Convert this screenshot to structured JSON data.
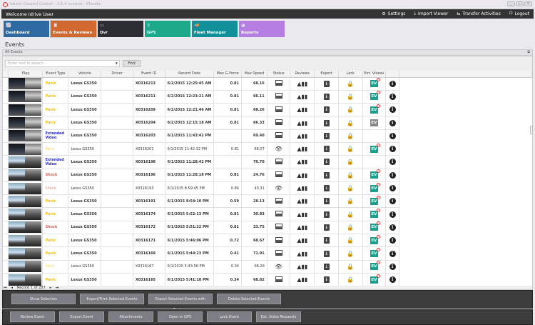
{
  "window": {
    "title": "Idrive Control Center - 3.4.4 version - Florida"
  },
  "header": {
    "welcome": "Welcome Idrive User",
    "menu": [
      {
        "label": "Settings",
        "icon": "gears-icon"
      },
      {
        "label": "Import Viewer",
        "icon": "download-icon"
      },
      {
        "label": "Transfer Activities",
        "icon": "transfer-icon"
      },
      {
        "label": "Logout",
        "icon": "power-icon"
      }
    ]
  },
  "tiles": [
    {
      "label": "Dashboard",
      "color": "#2f6aa3"
    },
    {
      "label": "Events & Reviews",
      "color": "#d0682f"
    },
    {
      "label": "Dvr",
      "color": "#2c2e33"
    },
    {
      "label": "GPS",
      "color": "#1ca98a"
    },
    {
      "label": "Fleet Manager",
      "color": "#12909a"
    },
    {
      "label": "Reports",
      "color": "#b47fe0"
    }
  ],
  "page": {
    "title": "Events",
    "section": "All Events",
    "search_placeholder": "Enter text to search...",
    "find": "Find"
  },
  "columns": [
    "Play",
    "Event Type",
    "Vehicle",
    "Driver",
    "Event ID",
    "Record Date",
    "Max G-Force",
    "Max Speed",
    "Status",
    "Reviews",
    "Export",
    "Lock",
    "Ext. Videos",
    ""
  ],
  "rows": [
    {
      "type": "Panic",
      "vehicle": "Lexus GS350",
      "id": "X0316213",
      "date": "6/2/2015 12:25:45 AM",
      "g": "0.81",
      "speed": "68.16",
      "status": "image",
      "ev": "new",
      "bold": true,
      "night": true
    },
    {
      "type": "Panic",
      "vehicle": "Lexus GS350",
      "id": "X0316211",
      "date": "6/2/2015 12:23:21 AM",
      "g": "0.81",
      "speed": "66.11",
      "status": "image",
      "ev": "new",
      "bold": true,
      "night": true
    },
    {
      "type": "Panic",
      "vehicle": "Lexus GS350",
      "id": "X0316209",
      "date": "6/2/2015 12:21:46 AM",
      "g": "0.81",
      "speed": "68.26",
      "status": "image",
      "ev": "new",
      "bold": true,
      "night": true
    },
    {
      "type": "Panic",
      "vehicle": "Lexus GS350",
      "id": "X0316204",
      "date": "6/2/2015 12:15:18 AM",
      "g": "0.81",
      "speed": "66.33",
      "status": "image",
      "ev": "grey",
      "bold": true,
      "night": true
    },
    {
      "type": "Extended Video",
      "vehicle": "Lexus GS350",
      "id": "X0316203",
      "date": "6/1/2015 11:43:42 PM",
      "g": "",
      "speed": "69.40",
      "status": "image",
      "ev": "none",
      "bold": true,
      "night": true
    },
    {
      "type": "Panic",
      "vehicle": "Lexus GS350",
      "id": "X0316201",
      "date": "6/1/2015 11:42:32 PM",
      "g": "0.81",
      "speed": "68.07",
      "status": "eye",
      "ev": "new",
      "bold": false,
      "night": true
    },
    {
      "type": "Extended Video",
      "vehicle": "Lexus GS350",
      "id": "X0316198",
      "date": "6/1/2015 11:28:42 PM",
      "g": "",
      "speed": "70.70",
      "status": "image",
      "ev": "none",
      "bold": true,
      "night": false
    },
    {
      "type": "Shock",
      "vehicle": "Lexus GS350",
      "id": "X0316196",
      "date": "6/1/2015 11:28:18 PM",
      "g": "0.81",
      "speed": "24.76",
      "status": "image",
      "ev": "new",
      "bold": true,
      "night": false
    },
    {
      "type": "Shock",
      "vehicle": "Lexus GS350",
      "id": "X0316193",
      "date": "6/1/2015 8:59:45 PM",
      "g": "0.84",
      "speed": "40.31",
      "status": "eye",
      "ev": "new",
      "bold": false,
      "night": false
    },
    {
      "type": "Panic",
      "vehicle": "Lexus GS350",
      "id": "X0316191",
      "date": "6/1/2015 8:54:10 PM",
      "g": "0.59",
      "speed": "28.13",
      "status": "image",
      "ev": "new",
      "bold": true,
      "night": false
    },
    {
      "type": "Panic",
      "vehicle": "Lexus GS350",
      "id": "X0316174",
      "date": "6/1/2015 5:52:13 PM",
      "g": "0.81",
      "speed": "30.83",
      "status": "image",
      "ev": "new",
      "bold": true,
      "night": false
    },
    {
      "type": "Shock",
      "vehicle": "Lexus GS350",
      "id": "X0316172",
      "date": "6/1/2015 5:51:22 PM",
      "g": "0.81",
      "speed": "33.75",
      "status": "image",
      "ev": "new",
      "bold": true,
      "night": false
    },
    {
      "type": "Panic",
      "vehicle": "Lexus GS350",
      "id": "X0316171",
      "date": "6/1/2015 5:46:06 PM",
      "g": "0.72",
      "speed": "68.67",
      "status": "image",
      "ev": "new",
      "bold": true,
      "night": false
    },
    {
      "type": "Panic",
      "vehicle": "Lexus GS350",
      "id": "X0316169",
      "date": "6/1/2015 5:44:23 PM",
      "g": "0.41",
      "speed": "71.91",
      "status": "image",
      "ev": "new",
      "bold": true,
      "night": false
    },
    {
      "type": "Panic",
      "vehicle": "Lexus GS350",
      "id": "X0316167",
      "date": "6/1/2015 5:43:56 PM",
      "g": "0.34",
      "speed": "68.29",
      "status": "eye",
      "ev": "new",
      "bold": false,
      "night": false
    },
    {
      "type": "Panic",
      "vehicle": "Lexus GS350",
      "id": "X0316165",
      "date": "6/1/2015 5:41:18 PM",
      "g": "0.34",
      "speed": "68.82",
      "status": "image",
      "ev": "new",
      "bold": true,
      "night": false
    }
  ],
  "type_colors": {
    "Panic": "#e6c21e",
    "Extended Video": "#2b2bcc",
    "Shock": "#e0604e"
  },
  "pager": {
    "record": "Record 1 of 287"
  },
  "actions1": [
    "Show Selection",
    "Export/Print Selected Events",
    "Export Selected Events with Reviews",
    "Delete Selected  Events"
  ],
  "actions2": [
    "Review Event",
    "Export Event",
    "Attachments",
    "Open in GPS",
    "Lock Event",
    "Ext. Video Requests"
  ]
}
